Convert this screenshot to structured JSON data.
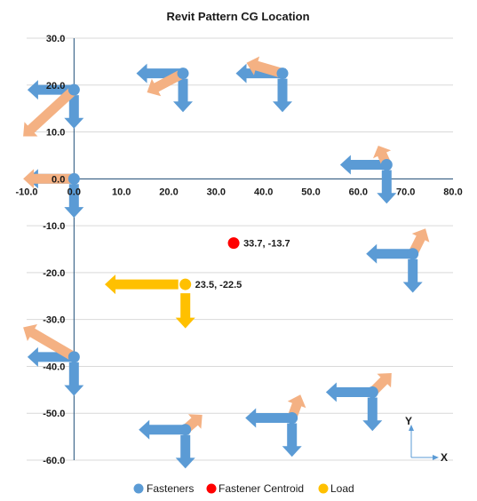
{
  "chart_data": {
    "type": "scatter",
    "title": "Revit Pattern CG Location",
    "xlabel": "",
    "ylabel": "",
    "xlim": [
      -10,
      80
    ],
    "ylim": [
      -60,
      30
    ],
    "x_ticks": [
      -10,
      0,
      10,
      20,
      30,
      40,
      50,
      60,
      70,
      80
    ],
    "y_ticks": [
      30,
      20,
      10,
      0,
      -10,
      -20,
      -30,
      -40,
      -50,
      -60
    ],
    "x_tick_labels": [
      "-10.0",
      "0.0",
      "10.0",
      "20.0",
      "30.0",
      "40.0",
      "50.0",
      "60.0",
      "70.0",
      "80.0"
    ],
    "y_tick_labels": [
      "30.0",
      "20.0",
      "10.0",
      "0.0",
      "-10.0",
      "-20.0",
      "-30.0",
      "-40.0",
      "-50.0",
      "-60.0"
    ],
    "grid": "horizontal",
    "legend_position": "bottom",
    "colors": {
      "fasteners": "#5b9bd5",
      "centroid": "#ff0000",
      "load": "#ffc000",
      "arrow_blue": "#5b9bd5",
      "arrow_orange": "#f4b183",
      "arrow_load": "#ffc000",
      "gridline": "#d9d9d9",
      "axis": "#1f4e79",
      "axis_indicator": "#5b9bd5"
    },
    "series": [
      {
        "name": "Fasteners",
        "points": [
          {
            "x": 0,
            "y": 19
          },
          {
            "x": 23,
            "y": 22.5
          },
          {
            "x": 44,
            "y": 22.5
          },
          {
            "x": 66,
            "y": 3
          },
          {
            "x": 0,
            "y": 0
          },
          {
            "x": 71.5,
            "y": -16
          },
          {
            "x": 0,
            "y": -38
          },
          {
            "x": 63,
            "y": -45.5
          },
          {
            "x": 46,
            "y": -51
          },
          {
            "x": 23.5,
            "y": -53.5
          }
        ]
      },
      {
        "name": "Fastener Centroid",
        "points": [
          {
            "x": 33.7,
            "y": -13.7,
            "label": "33.7, -13.7"
          }
        ]
      },
      {
        "name": "Load",
        "points": [
          {
            "x": 23.5,
            "y": -22.5,
            "label": "23.5, -22.5"
          }
        ]
      }
    ],
    "fastener_arrows": [
      {
        "x": 0,
        "y": 19,
        "shear_x": -11,
        "shear_y": -15,
        "moment_x": -12,
        "moment_y": -11
      },
      {
        "x": 23,
        "y": 22.5,
        "shear_x": -11,
        "shear_y": -15,
        "moment_x": -8.5,
        "moment_y": -4.5
      },
      {
        "x": 44,
        "y": 22.5,
        "shear_x": -11,
        "shear_y": -15,
        "moment_x": -8.5,
        "moment_y": 2.5
      },
      {
        "x": 66,
        "y": 3,
        "shear_x": -11,
        "shear_y": -15,
        "moment_x": -2,
        "moment_y": 4.5
      },
      {
        "x": 0,
        "y": 0,
        "shear_x": -11,
        "shear_y": -15,
        "moment_x": -12,
        "moment_y": 0
      },
      {
        "x": 71.5,
        "y": -16,
        "shear_x": -11,
        "shear_y": -15,
        "moment_x": 3,
        "moment_y": 6
      },
      {
        "x": 0,
        "y": -38,
        "shear_x": -11,
        "shear_y": -15,
        "moment_x": -12,
        "moment_y": 7
      },
      {
        "x": 63,
        "y": -45.5,
        "shear_x": -11,
        "shear_y": -15,
        "moment_x": 4.5,
        "moment_y": 4.5
      },
      {
        "x": 46,
        "y": -51,
        "shear_x": -11,
        "shear_y": -15,
        "moment_x": 2,
        "moment_y": 5.5
      },
      {
        "x": 23.5,
        "y": -53.5,
        "shear_x": -11,
        "shear_y": -15,
        "moment_x": 4,
        "moment_y": 3.5
      }
    ],
    "load_arrows": {
      "x": 23.5,
      "y": -22.5,
      "x_component": -19,
      "y_component": -11
    },
    "legend": [
      "Fasteners",
      "Fastener Centroid",
      "Load"
    ],
    "axis_indicator": {
      "x_label": "X",
      "y_label": "Y"
    }
  }
}
